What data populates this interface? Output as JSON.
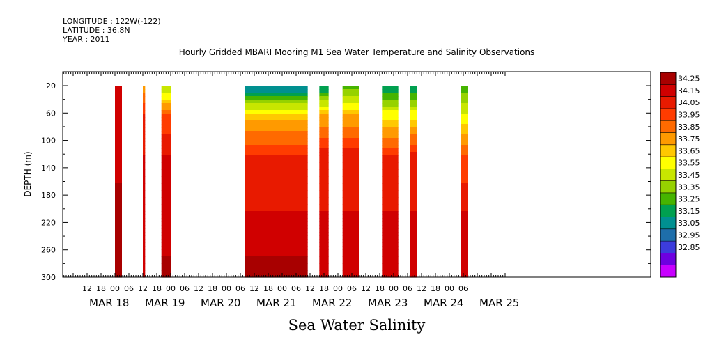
{
  "header": {
    "longitude": "LONGITUDE : 122W(-122)",
    "latitude": "LATITUDE : 36.8N",
    "year": "YEAR : 2011"
  },
  "chart_data": {
    "type": "heatmap",
    "title": "Hourly Gridded MBARI Mooring M1 Sea Water Temperature and Salinity Observations",
    "subtitle": "Sea Water Salinity",
    "ylabel": "DEPTH (m)",
    "y_ticks": [
      20,
      60,
      100,
      140,
      180,
      220,
      260,
      300
    ],
    "y_range": [
      300,
      0
    ],
    "x_hour_labels": [
      "12",
      "18",
      "00",
      "06",
      "12",
      "18",
      "00",
      "06",
      "12",
      "18",
      "00",
      "06",
      "12",
      "18",
      "00",
      "06",
      "12",
      "18",
      "00",
      "06",
      "12",
      "18",
      "00",
      "06",
      "12",
      "18",
      "00",
      "06"
    ],
    "x_day_labels": [
      "MAR 18",
      "MAR 19",
      "MAR 20",
      "MAR 21",
      "MAR 22",
      "MAR 23",
      "MAR 24",
      "MAR 25"
    ],
    "colorbar": {
      "levels": [
        "34.25",
        "34.15",
        "34.05",
        "33.95",
        "33.85",
        "33.75",
        "33.65",
        "33.55",
        "33.45",
        "33.35",
        "33.25",
        "33.15",
        "33.05",
        "32.95",
        "32.85"
      ],
      "colors": [
        "#a80000",
        "#d00000",
        "#e81a00",
        "#ff3c00",
        "#ff6a00",
        "#ff9a00",
        "#ffc800",
        "#ffff00",
        "#c8e600",
        "#96d200",
        "#46b400",
        "#00a050",
        "#009090",
        "#1e6eaa",
        "#3c3cdc",
        "#6e00e0",
        "#c800ff"
      ]
    },
    "data_blocks": [
      {
        "start_hour": 0,
        "end_hour": 3,
        "profile": [
          34.2,
          34.2,
          34.2,
          34.3,
          34.3
        ]
      },
      {
        "start_hour": 12,
        "end_hour": 13,
        "profile": [
          33.8,
          34.05,
          34.15,
          34.2,
          34.25
        ]
      },
      {
        "start_hour": 20,
        "end_hour": 24,
        "profile": [
          33.45,
          33.95,
          34.15,
          34.15,
          34.3
        ]
      },
      {
        "start_hour": 56,
        "end_hour": 83,
        "profile": [
          33.05,
          33.7,
          34.05,
          34.15,
          34.3
        ]
      },
      {
        "start_hour": 88,
        "end_hour": 92,
        "profile": [
          33.15,
          33.75,
          34.1,
          34.15,
          34.25
        ]
      },
      {
        "start_hour": 98,
        "end_hour": 105,
        "profile": [
          33.3,
          33.75,
          34.1,
          34.15,
          34.25
        ]
      },
      {
        "start_hour": 115,
        "end_hour": 122,
        "profile": [
          33.15,
          33.6,
          34.05,
          34.15,
          34.25
        ]
      },
      {
        "start_hour": 127,
        "end_hour": 130,
        "profile": [
          33.15,
          33.6,
          34.1,
          34.15,
          34.25
        ]
      },
      {
        "start_hour": 149,
        "end_hour": 152,
        "profile": [
          33.3,
          33.55,
          33.95,
          34.15,
          34.25
        ]
      }
    ]
  }
}
